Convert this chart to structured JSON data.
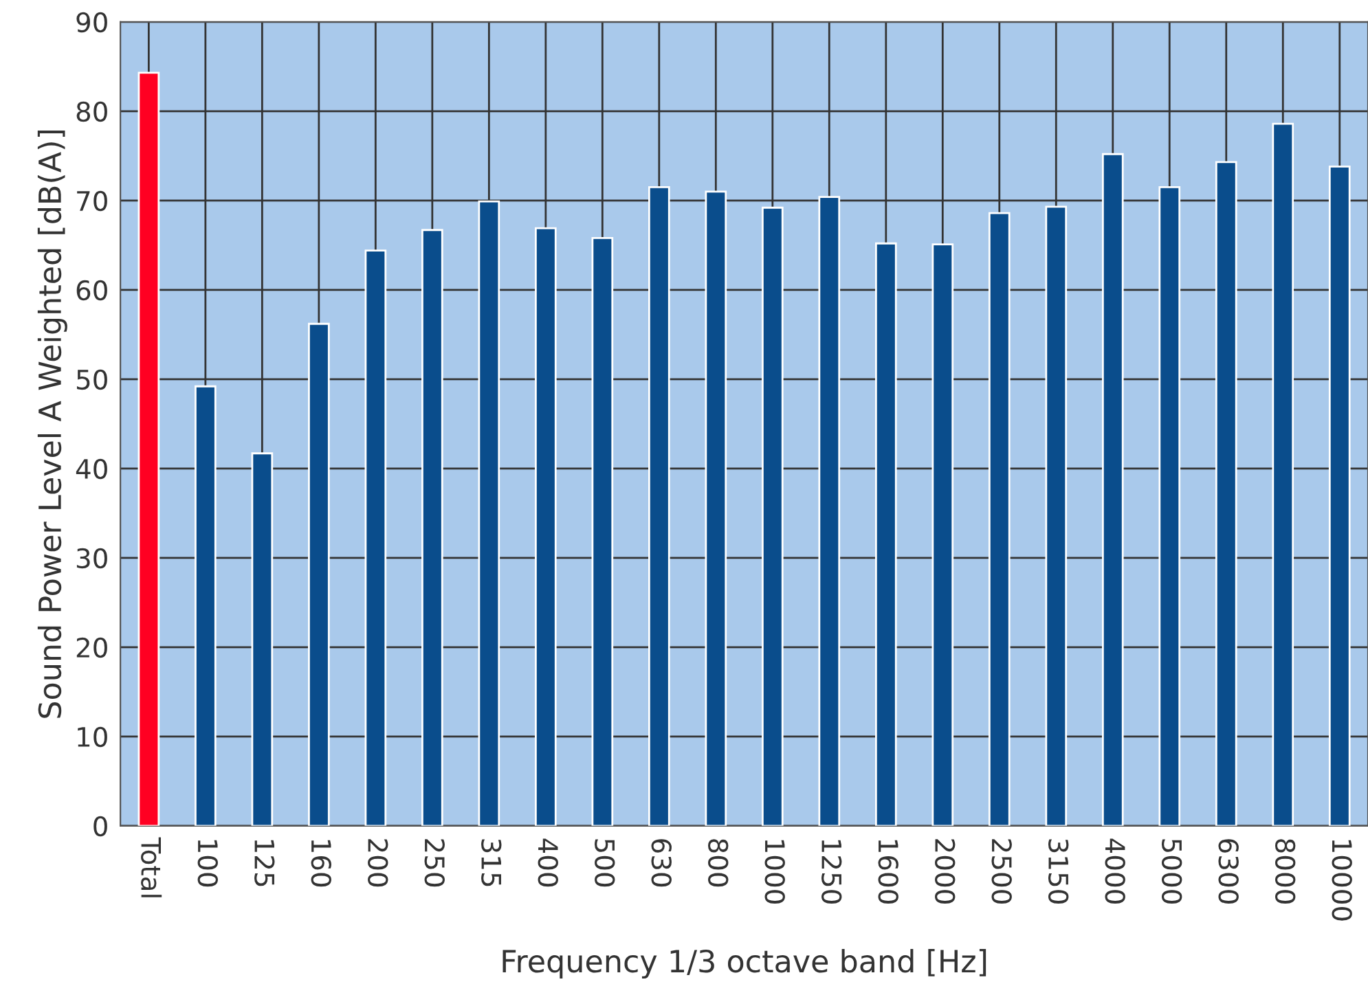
{
  "chart_data": {
    "type": "bar",
    "xlabel": "Frequency 1/3 octave band [Hz]",
    "ylabel": "Sound Power Level A Weighted [dB(A)]",
    "categories": [
      "Total",
      "100",
      "125",
      "160",
      "200",
      "250",
      "315",
      "400",
      "500",
      "630",
      "800",
      "1000",
      "1250",
      "1600",
      "2000",
      "2500",
      "3150",
      "4000",
      "5000",
      "6300",
      "8000",
      "10000"
    ],
    "values": [
      84.3,
      49.2,
      41.7,
      56.2,
      64.4,
      66.7,
      69.9,
      66.9,
      65.8,
      71.5,
      71.0,
      69.2,
      70.4,
      65.2,
      65.1,
      68.6,
      69.3,
      75.2,
      71.5,
      74.3,
      78.6,
      73.8
    ],
    "colors": [
      "#ff0022",
      "#0a4d8c",
      "#0a4d8c",
      "#0a4d8c",
      "#0a4d8c",
      "#0a4d8c",
      "#0a4d8c",
      "#0a4d8c",
      "#0a4d8c",
      "#0a4d8c",
      "#0a4d8c",
      "#0a4d8c",
      "#0a4d8c",
      "#0a4d8c",
      "#0a4d8c",
      "#0a4d8c",
      "#0a4d8c",
      "#0a4d8c",
      "#0a4d8c",
      "#0a4d8c",
      "#0a4d8c",
      "#0a4d8c"
    ],
    "ylim": [
      0,
      90
    ],
    "yticks": [
      0,
      10,
      20,
      30,
      40,
      50,
      60,
      70,
      80,
      90
    ],
    "grid": true
  }
}
